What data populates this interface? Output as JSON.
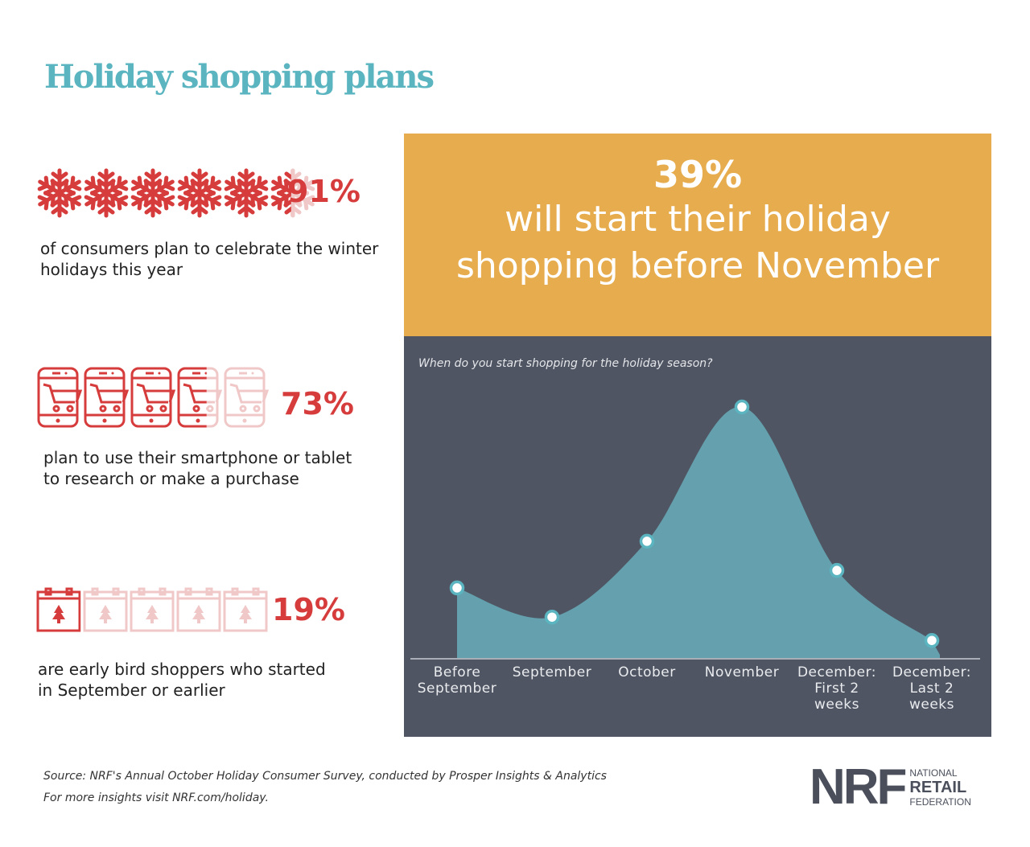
{
  "title": "Holiday shopping plans",
  "colors": {
    "title": "#5bb5c0",
    "red": "#d63c3c",
    "faded": "#f0c8c8",
    "orange": "#e6ac4d",
    "dark_panel": "#4f5562",
    "area": "#64a0ad",
    "point_fill": "#ffffff",
    "point_stroke": "#5bb5c0",
    "logo": "#4a4f5b"
  },
  "stats": [
    {
      "value": "91%",
      "description": "of consumers plan to celebrate the winter holidays this year",
      "icon": "snowflake-icon",
      "icon_count": 6,
      "filled_fraction": 0.91
    },
    {
      "value": "73%",
      "description_lines": [
        "plan to use their smartphone or tablet",
        "to research or make a purchase"
      ],
      "icon": "smartphone-cart-icon",
      "icon_count": 5,
      "filled_fraction": 0.73
    },
    {
      "value": "19%",
      "description_lines": [
        "are early bird shoppers who started",
        "in September or earlier"
      ],
      "icon": "calendar-tree-icon",
      "icon_count": 5,
      "filled_fraction": 0.19
    }
  ],
  "stat0_lines": [
    "of consumers plan to celebrate the winter",
    "holidays this year"
  ],
  "highlight": {
    "value": "39%",
    "line1": "will start their holiday",
    "line2": "shopping before November"
  },
  "chart_data": {
    "type": "area",
    "title": "When do you start shopping for the holiday season?",
    "categories": [
      [
        "Before",
        "September"
      ],
      [
        "September"
      ],
      [
        "October"
      ],
      [
        "November"
      ],
      [
        "December:",
        "First 2",
        "weeks"
      ],
      [
        "December:",
        "Last 2",
        "weeks"
      ]
    ],
    "values": [
      12,
      7,
      20,
      43,
      15,
      3
    ],
    "unit": "%",
    "ylim": [
      0,
      43
    ],
    "grid": false,
    "smooth": true,
    "markers": true
  },
  "footer": {
    "source": "Source: NRF's Annual October Holiday Consumer Survey, conducted by Prosper Insights & Analytics",
    "more": "For more insights visit NRF.com/holiday."
  },
  "logo": {
    "mark": "NRF",
    "line1": "NATIONAL",
    "line2": "RETAIL",
    "line3": "FEDERATION"
  }
}
